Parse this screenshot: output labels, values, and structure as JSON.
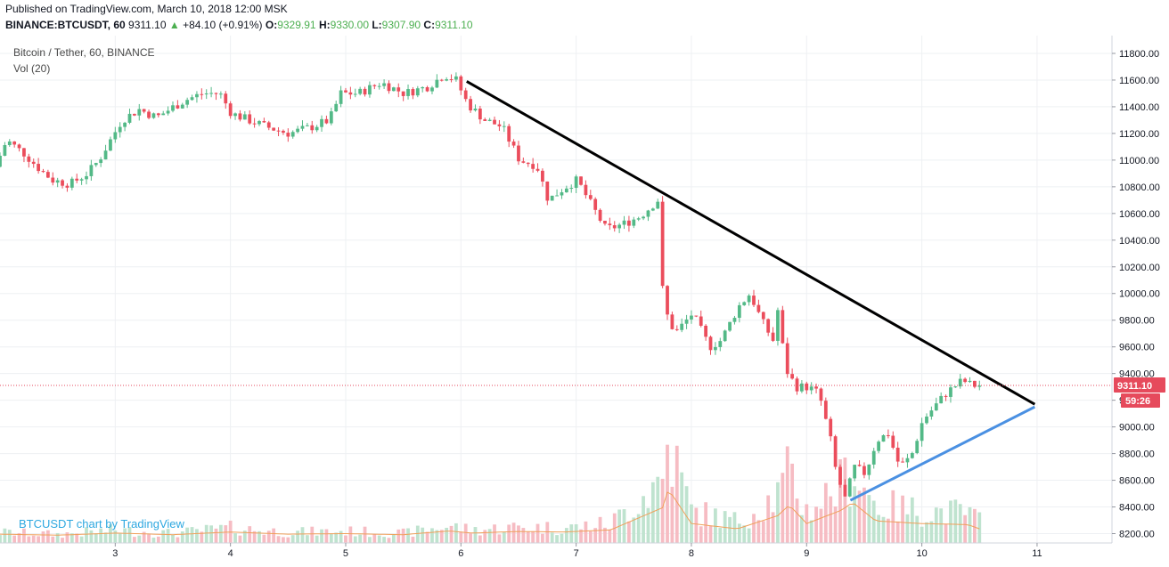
{
  "header": {
    "published": "Published on TradingView.com, March 10, 2018 12:00 MSK",
    "symbol": "BINANCE:BTCUSDT, 60",
    "last": "9311.10",
    "change_arrow": "▲",
    "change": "+84.10 (+0.91%)",
    "o_label": "O:",
    "o_value": "9329.91",
    "h_label": "H:",
    "h_value": "9330.00",
    "l_label": "L:",
    "l_value": "9307.90",
    "c_label": "C:",
    "c_value": "9311.10"
  },
  "legend": {
    "title": "Bitcoin / Tether, 60, BINANCE",
    "volume": "Vol (20)"
  },
  "watermark": "BTCUSDT chart by TradingView",
  "colors": {
    "up": "#4caf50",
    "down": "#e64a5c",
    "up_fill": "#53b987",
    "down_fill": "#eb4d5c",
    "vol_up": "#bfe3cf",
    "vol_down": "#f6bcc3",
    "vol_ma": "#f0a05a",
    "resistance": "#000000",
    "support": "#4a90e2",
    "price_line": "#e64a5c"
  },
  "chart_data": {
    "type": "candlestick",
    "y_ticks": [
      8200,
      8400,
      8600,
      8800,
      9000,
      9200,
      9400,
      9600,
      9800,
      10000,
      10200,
      10400,
      10600,
      10800,
      11000,
      11200,
      11400,
      11600,
      11800
    ],
    "y_tick_labels": [
      "8200.00",
      "8400.00",
      "8600.00",
      "8800.00",
      "9000.00",
      "9200.00",
      "9400.00",
      "9600.00",
      "9800.00",
      "10000.00",
      "10200.00",
      "10400.00",
      "10600.00",
      "10800.00",
      "11000.00",
      "11200.00",
      "11400.00",
      "11600.00",
      "11800.00"
    ],
    "x_ticks": [
      3,
      4,
      5,
      6,
      7,
      8,
      9,
      10,
      11
    ],
    "x_tick_labels": [
      "3",
      "4",
      "5",
      "6",
      "7",
      "8",
      "9",
      "10",
      "11"
    ],
    "price_range": [
      8130,
      11900
    ],
    "time_range": [
      2.0,
      11.65
    ],
    "last_price": 9311.1,
    "last_price_label": "9311.10",
    "countdown_label": "59:26",
    "price_path": [
      [
        2.0,
        10950
      ],
      [
        2.1,
        11150
      ],
      [
        2.25,
        11050
      ],
      [
        2.4,
        10920
      ],
      [
        2.5,
        10850
      ],
      [
        2.65,
        10820
      ],
      [
        2.8,
        10900
      ],
      [
        2.9,
        11000
      ],
      [
        3.0,
        11150
      ],
      [
        3.1,
        11300
      ],
      [
        3.25,
        11380
      ],
      [
        3.4,
        11320
      ],
      [
        3.55,
        11400
      ],
      [
        3.65,
        11450
      ],
      [
        3.8,
        11500
      ],
      [
        3.95,
        11500
      ],
      [
        4.05,
        11350
      ],
      [
        4.2,
        11300
      ],
      [
        4.35,
        11250
      ],
      [
        4.55,
        11200
      ],
      [
        4.75,
        11250
      ],
      [
        4.9,
        11300
      ],
      [
        5.0,
        11500
      ],
      [
        5.15,
        11500
      ],
      [
        5.35,
        11580
      ],
      [
        5.55,
        11500
      ],
      [
        5.75,
        11550
      ],
      [
        5.9,
        11640
      ],
      [
        6.0,
        11600
      ],
      [
        6.1,
        11420
      ],
      [
        6.25,
        11300
      ],
      [
        6.4,
        11250
      ],
      [
        6.55,
        11000
      ],
      [
        6.7,
        10960
      ],
      [
        6.8,
        10700
      ],
      [
        6.95,
        10800
      ],
      [
        7.05,
        10850
      ],
      [
        7.15,
        10700
      ],
      [
        7.3,
        10480
      ],
      [
        7.45,
        10520
      ],
      [
        7.6,
        10580
      ],
      [
        7.75,
        10700
      ],
      [
        7.8,
        9900
      ],
      [
        7.9,
        9700
      ],
      [
        8.05,
        9850
      ],
      [
        8.2,
        9600
      ],
      [
        8.3,
        9650
      ],
      [
        8.45,
        9900
      ],
      [
        8.55,
        10000
      ],
      [
        8.65,
        9800
      ],
      [
        8.75,
        9650
      ],
      [
        8.8,
        9920
      ],
      [
        8.85,
        9450
      ],
      [
        8.95,
        9300
      ],
      [
        9.05,
        9300
      ],
      [
        9.15,
        9250
      ],
      [
        9.25,
        8900
      ],
      [
        9.3,
        8650
      ],
      [
        9.38,
        8450
      ],
      [
        9.45,
        8700
      ],
      [
        9.55,
        8650
      ],
      [
        9.65,
        8900
      ],
      [
        9.75,
        8950
      ],
      [
        9.85,
        8700
      ],
      [
        9.95,
        8780
      ],
      [
        10.05,
        9050
      ],
      [
        10.15,
        9150
      ],
      [
        10.25,
        9250
      ],
      [
        10.32,
        9300
      ],
      [
        10.4,
        9350
      ],
      [
        10.45,
        9320
      ],
      [
        10.5,
        9311
      ]
    ],
    "volume_path": [
      [
        2.0,
        0.1
      ],
      [
        2.5,
        0.08
      ],
      [
        3.0,
        0.12
      ],
      [
        3.5,
        0.09
      ],
      [
        4.0,
        0.14
      ],
      [
        4.5,
        0.1
      ],
      [
        5.0,
        0.11
      ],
      [
        5.5,
        0.09
      ],
      [
        5.9,
        0.16
      ],
      [
        6.1,
        0.12
      ],
      [
        6.5,
        0.15
      ],
      [
        6.9,
        0.14
      ],
      [
        7.3,
        0.18
      ],
      [
        7.75,
        0.6
      ],
      [
        7.8,
        0.95
      ],
      [
        8.0,
        0.3
      ],
      [
        8.4,
        0.2
      ],
      [
        8.75,
        0.45
      ],
      [
        8.85,
        0.65
      ],
      [
        9.0,
        0.3
      ],
      [
        9.3,
        0.55
      ],
      [
        9.4,
        0.7
      ],
      [
        9.6,
        0.35
      ],
      [
        10.0,
        0.3
      ],
      [
        10.4,
        0.28
      ],
      [
        10.5,
        0.2
      ]
    ],
    "resistance_line": [
      [
        6.05,
        11590
      ],
      [
        10.98,
        9170
      ]
    ],
    "support_line": [
      [
        9.38,
        8450
      ],
      [
        10.98,
        9150
      ]
    ]
  }
}
